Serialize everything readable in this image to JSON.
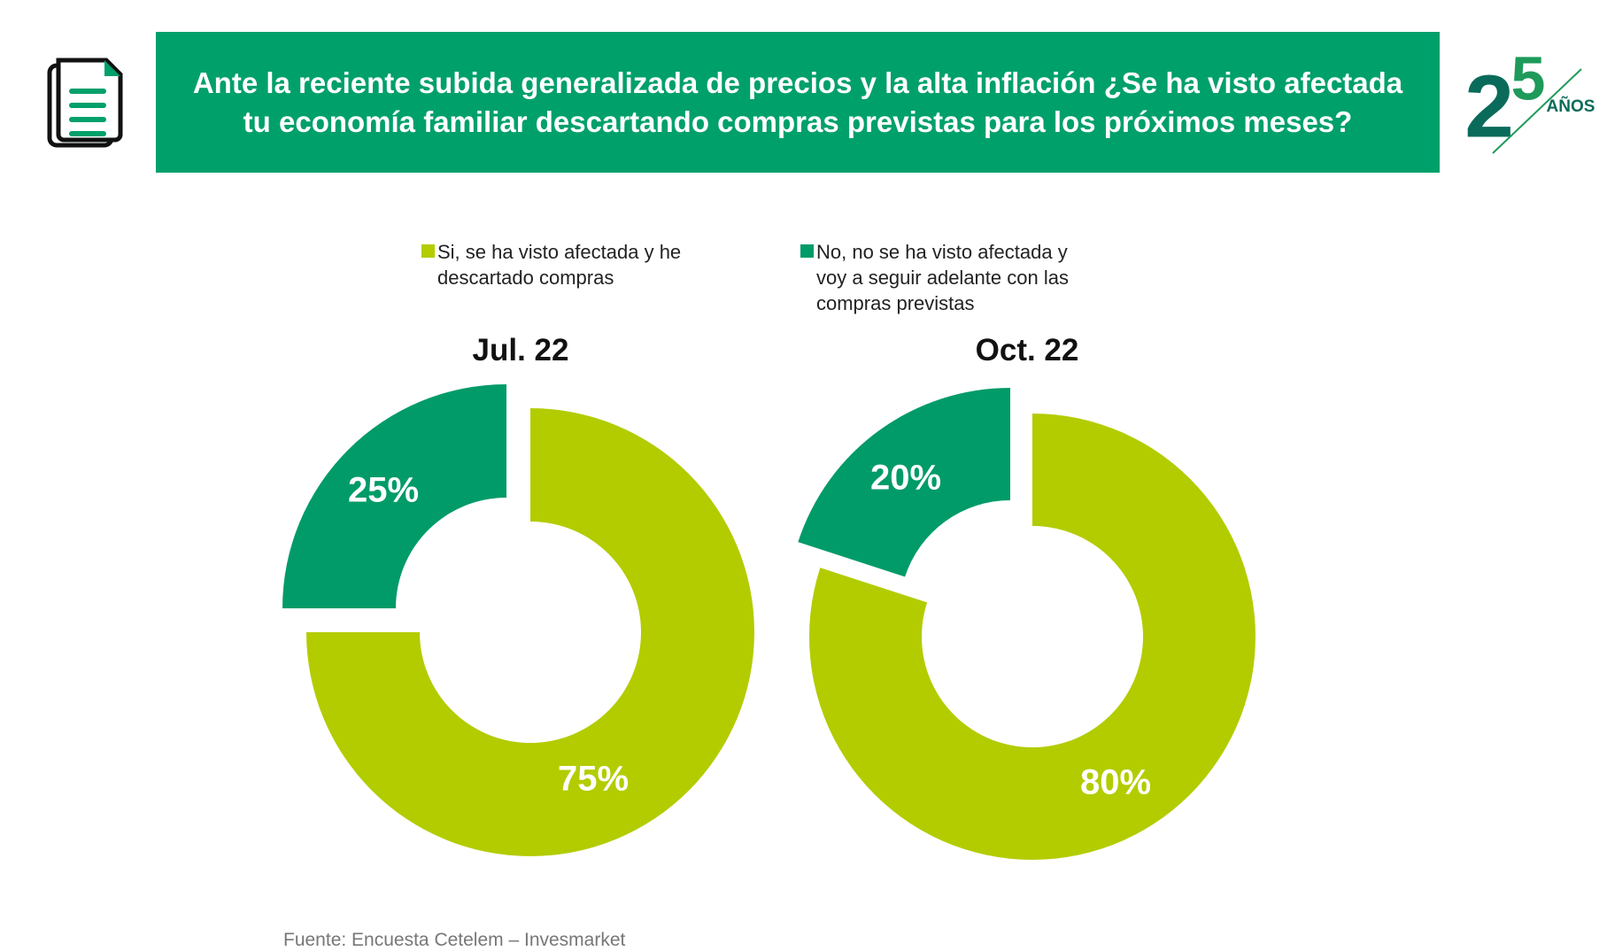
{
  "header": {
    "title": "Ante la reciente subida generalizada de precios y la alta inflación ¿Se ha visto afectada tu economía familiar descartando compras previstas para los próximos meses?",
    "logo_text": "25 AÑOS",
    "icon": "document-icon"
  },
  "colors": {
    "banner": "#00A06B",
    "yes": "#B3CC00",
    "no": "#009B68"
  },
  "footer": "Fuente: Encuesta Cetelem – Invesmarket",
  "chart_data": {
    "type": "pie",
    "variant": "donut",
    "legend": {
      "placement": "top",
      "entries": [
        "Si, se ha visto afectada y he descartado compras",
        "No, no se ha visto afectada y voy a seguir adelante con las compras previstas"
      ]
    },
    "charts": [
      {
        "title": "Jul. 22",
        "slices": [
          {
            "label": "Si, se ha visto afectada y he descartado compras",
            "value": 75,
            "display": "75%"
          },
          {
            "label": "No, no se ha visto afectada y voy a seguir adelante con las compras previstas",
            "value": 25,
            "display": "25%"
          }
        ]
      },
      {
        "title": "Oct. 22",
        "slices": [
          {
            "label": "Si, se ha visto afectada y he descartado compras",
            "value": 80,
            "display": "80%"
          },
          {
            "label": "No, no se ha visto afectada y voy a seguir adelante con las compras previstas",
            "value": 20,
            "display": "20%"
          }
        ]
      }
    ]
  }
}
